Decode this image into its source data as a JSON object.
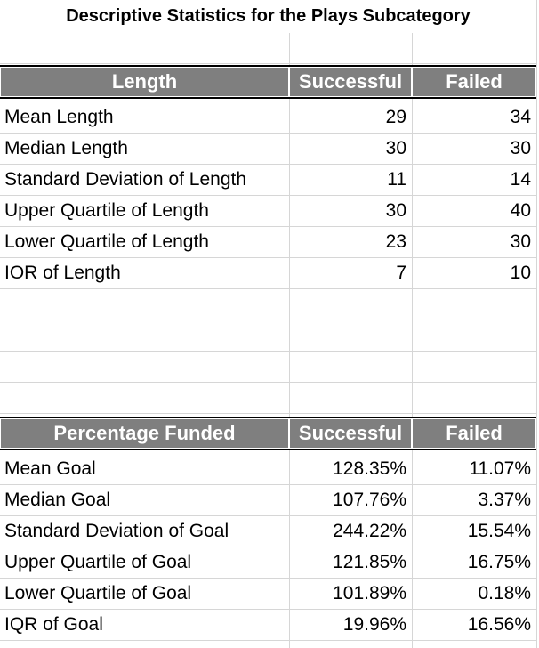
{
  "title": "Descriptive Statistics for the Plays Subcategory",
  "table1": {
    "headers": [
      "Length",
      "Successful",
      "Failed"
    ],
    "rows": [
      {
        "label": "Mean Length",
        "successful": "29",
        "failed": "34"
      },
      {
        "label": "Median Length",
        "successful": "30",
        "failed": "30"
      },
      {
        "label": "Standard Deviation of Length",
        "successful": "11",
        "failed": "14"
      },
      {
        "label": "Upper Quartile of Length",
        "successful": "30",
        "failed": "40"
      },
      {
        "label": "Lower Quartile of Length",
        "successful": "23",
        "failed": "30"
      },
      {
        "label": "IOR of Length",
        "successful": "7",
        "failed": "10"
      }
    ]
  },
  "table2": {
    "headers": [
      "Percentage Funded",
      "Successful",
      "Failed"
    ],
    "rows": [
      {
        "label": "Mean Goal",
        "successful": "128.35%",
        "failed": "11.07%"
      },
      {
        "label": "Median Goal",
        "successful": "107.76%",
        "failed": "3.37%"
      },
      {
        "label": "Standard Deviation of Goal",
        "successful": "244.22%",
        "failed": "15.54%"
      },
      {
        "label": "Upper Quartile of Goal",
        "successful": "121.85%",
        "failed": "16.75%"
      },
      {
        "label": "Lower Quartile of Goal",
        "successful": "101.89%",
        "failed": "0.18%"
      },
      {
        "label": "IQR of Goal",
        "successful": "19.96%",
        "failed": "16.56%"
      }
    ]
  },
  "colors": {
    "header_bg": "#7f7f7f",
    "header_text": "#ffffff",
    "gridline": "#d6d6d6"
  }
}
